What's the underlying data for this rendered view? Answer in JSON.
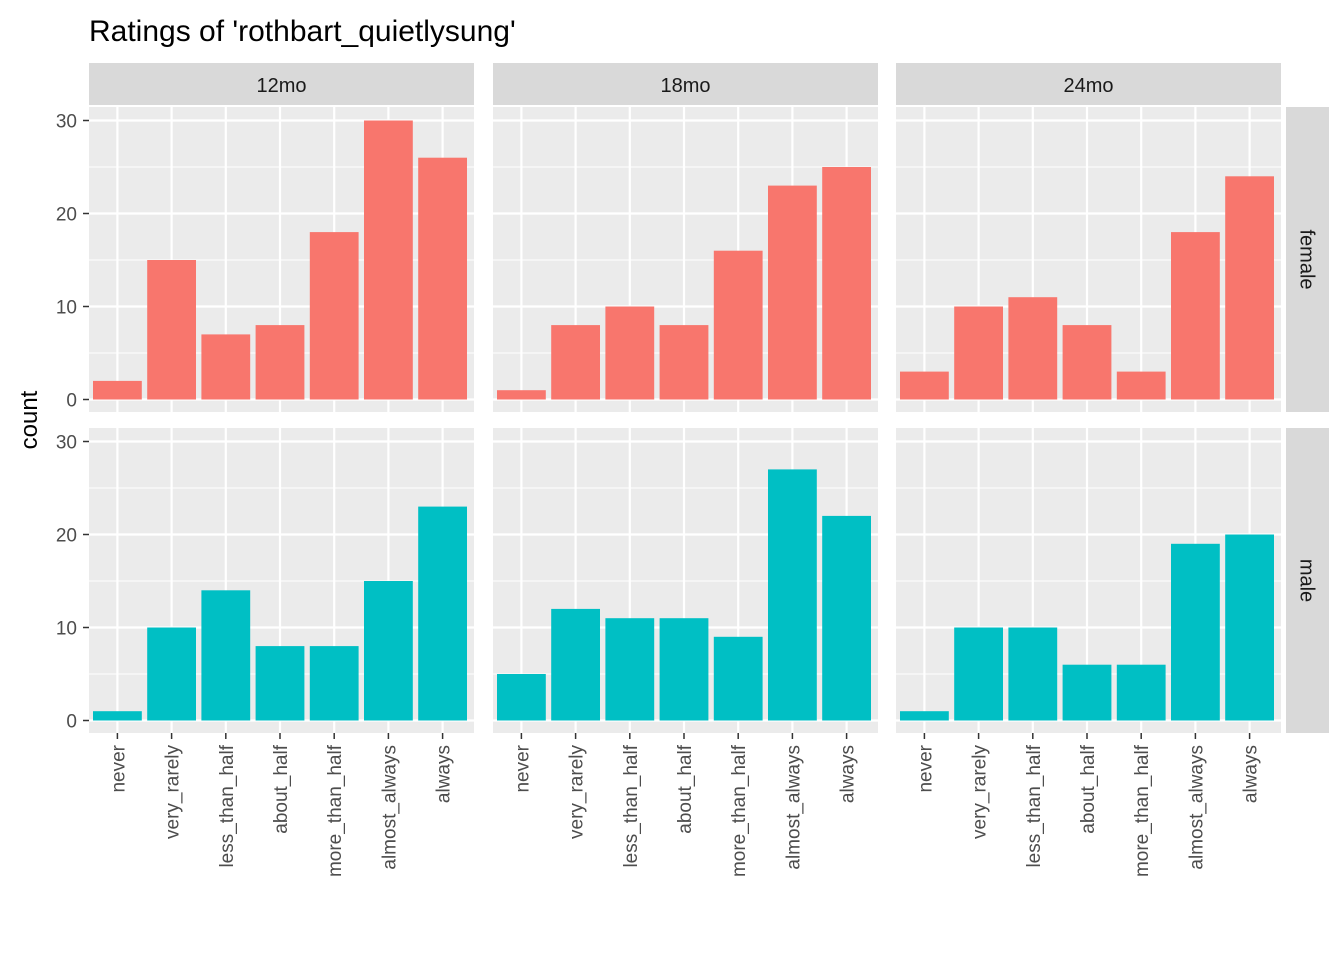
{
  "chart_data": {
    "type": "bar",
    "title": "Ratings of 'rothbart_quietlysung'",
    "xlabel": "",
    "ylabel": "count",
    "ylim": [
      0,
      31.5
    ],
    "yticks": [
      0,
      10,
      20,
      30
    ],
    "grid": true,
    "legend": "none",
    "categories": [
      "never",
      "very_rarely",
      "less_than_half",
      "about_half",
      "more_than_half",
      "almost_always",
      "always"
    ],
    "facet_columns": [
      "12mo",
      "18mo",
      "24mo"
    ],
    "facet_rows": [
      "female",
      "male"
    ],
    "colors": {
      "female": "#F8766D",
      "male": "#00BFC4",
      "panel": "#EBEBEB",
      "strip": "#D9D9D9",
      "grid": "#FFFFFF"
    },
    "panels": [
      {
        "row": "female",
        "column": "12mo",
        "values": [
          2,
          15,
          7,
          8,
          18,
          30,
          26
        ]
      },
      {
        "row": "female",
        "column": "18mo",
        "values": [
          1,
          8,
          10,
          8,
          16,
          23,
          25
        ]
      },
      {
        "row": "female",
        "column": "24mo",
        "values": [
          3,
          10,
          11,
          8,
          3,
          18,
          24
        ]
      },
      {
        "row": "male",
        "column": "12mo",
        "values": [
          1,
          10,
          14,
          8,
          8,
          15,
          23
        ]
      },
      {
        "row": "male",
        "column": "18mo",
        "values": [
          5,
          12,
          11,
          11,
          9,
          27,
          22
        ]
      },
      {
        "row": "male",
        "column": "24mo",
        "values": [
          1,
          10,
          10,
          6,
          6,
          19,
          20
        ]
      }
    ]
  }
}
